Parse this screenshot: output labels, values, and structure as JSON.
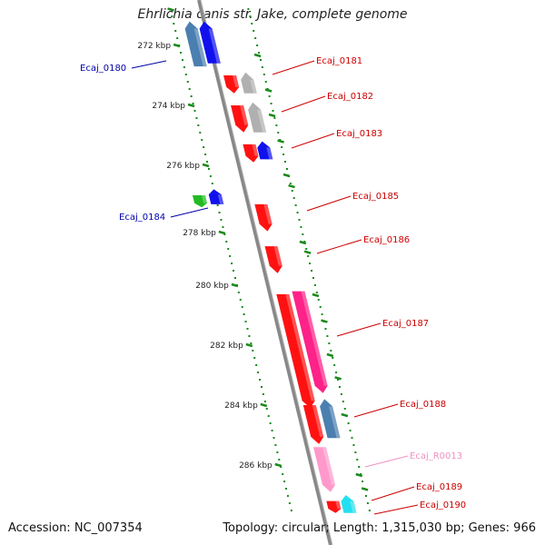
{
  "title": "Ehrlichia canis str. Jake, complete genome",
  "footer": {
    "accession": "Accession: NC_007354",
    "summary": "Topology: circular; Length: 1,315,030 bp; Genes: 966"
  },
  "colors": {
    "backbone": "#888888",
    "tick": "#1a8a1a",
    "label_red": "#cc0000",
    "label_blue": "#0000aa",
    "label_pink": "#f090c0",
    "red": "#ff1111",
    "blue": "#1111ee",
    "steel": "#4a7fb0",
    "gray": "#b0b0b0",
    "green": "#22bb22",
    "magenta": "#ff2288",
    "pink": "#ff99cc",
    "cyan": "#22e0f0"
  },
  "scale": {
    "unit": "kbp",
    "tick_labels": [
      "272 kbp",
      "274 kbp",
      "276 kbp",
      "278 kbp",
      "280 kbp",
      "282 kbp",
      "284 kbp",
      "286 kbp"
    ]
  },
  "gene_labels": [
    {
      "id": "Ecaj_0180",
      "color": "blue"
    },
    {
      "id": "Ecaj_0181",
      "color": "red"
    },
    {
      "id": "Ecaj_0182",
      "color": "red"
    },
    {
      "id": "Ecaj_0183",
      "color": "red"
    },
    {
      "id": "Ecaj_0184",
      "color": "blue"
    },
    {
      "id": "Ecaj_0185",
      "color": "red"
    },
    {
      "id": "Ecaj_0186",
      "color": "red"
    },
    {
      "id": "Ecaj_0187",
      "color": "red"
    },
    {
      "id": "Ecaj_0188",
      "color": "red"
    },
    {
      "id": "Ecaj_R0013",
      "color": "pink"
    },
    {
      "id": "Ecaj_0189",
      "color": "red"
    },
    {
      "id": "Ecaj_0190",
      "color": "red"
    }
  ],
  "features": [
    {
      "name": "Ecaj_0180",
      "color": "steel",
      "strand": "minus",
      "start_kbp": 271.2,
      "end_kbp": 272.7
    },
    {
      "name": "Ecaj_0180",
      "color": "blue",
      "strand": "minus",
      "start_kbp": 271.2,
      "end_kbp": 272.6
    },
    {
      "name": "Ecaj_0181",
      "color": "red",
      "strand": "plus",
      "start_kbp": 273.0,
      "end_kbp": 273.6
    },
    {
      "name": "Ecaj_0181",
      "color": "gray",
      "strand": "minus",
      "start_kbp": 272.9,
      "end_kbp": 273.6
    },
    {
      "name": "Ecaj_0182",
      "color": "red",
      "strand": "plus",
      "start_kbp": 274.0,
      "end_kbp": 274.9
    },
    {
      "name": "Ecaj_0182",
      "color": "gray",
      "strand": "minus",
      "start_kbp": 273.9,
      "end_kbp": 274.9
    },
    {
      "name": "Ecaj_0183",
      "color": "red",
      "strand": "plus",
      "start_kbp": 275.3,
      "end_kbp": 275.9
    },
    {
      "name": "Ecaj_0183",
      "color": "blue",
      "strand": "minus",
      "start_kbp": 275.2,
      "end_kbp": 275.8
    },
    {
      "name": "Ecaj_0184",
      "color": "green",
      "strand": "plus",
      "start_kbp": 277.0,
      "end_kbp": 277.4
    },
    {
      "name": "Ecaj_0184",
      "color": "blue",
      "strand": "minus",
      "start_kbp": 276.8,
      "end_kbp": 277.3
    },
    {
      "name": "Ecaj_0185",
      "color": "red",
      "strand": "plus",
      "start_kbp": 277.3,
      "end_kbp": 278.2
    },
    {
      "name": "Ecaj_0186",
      "color": "red",
      "strand": "plus",
      "start_kbp": 278.7,
      "end_kbp": 279.6
    },
    {
      "name": "Ecaj_0187",
      "color": "red",
      "strand": "plus",
      "start_kbp": 280.3,
      "end_kbp": 284.1
    },
    {
      "name": "Ecaj_0187",
      "color": "magenta",
      "strand": "plus",
      "start_kbp": 280.2,
      "end_kbp": 283.6
    },
    {
      "name": "Ecaj_0188",
      "color": "red",
      "strand": "plus",
      "start_kbp": 284.0,
      "end_kbp": 285.3
    },
    {
      "name": "Ecaj_0188",
      "color": "steel",
      "strand": "minus",
      "start_kbp": 283.8,
      "end_kbp": 285.1
    },
    {
      "name": "Ecaj_R0013",
      "color": "pink",
      "strand": "plus",
      "start_kbp": 285.4,
      "end_kbp": 286.9
    },
    {
      "name": "Ecaj_0189",
      "color": "red",
      "strand": "plus",
      "start_kbp": 287.2,
      "end_kbp": 287.6
    },
    {
      "name": "Ecaj_0190",
      "color": "cyan",
      "strand": "minus",
      "start_kbp": 287.0,
      "end_kbp": 287.6
    }
  ]
}
